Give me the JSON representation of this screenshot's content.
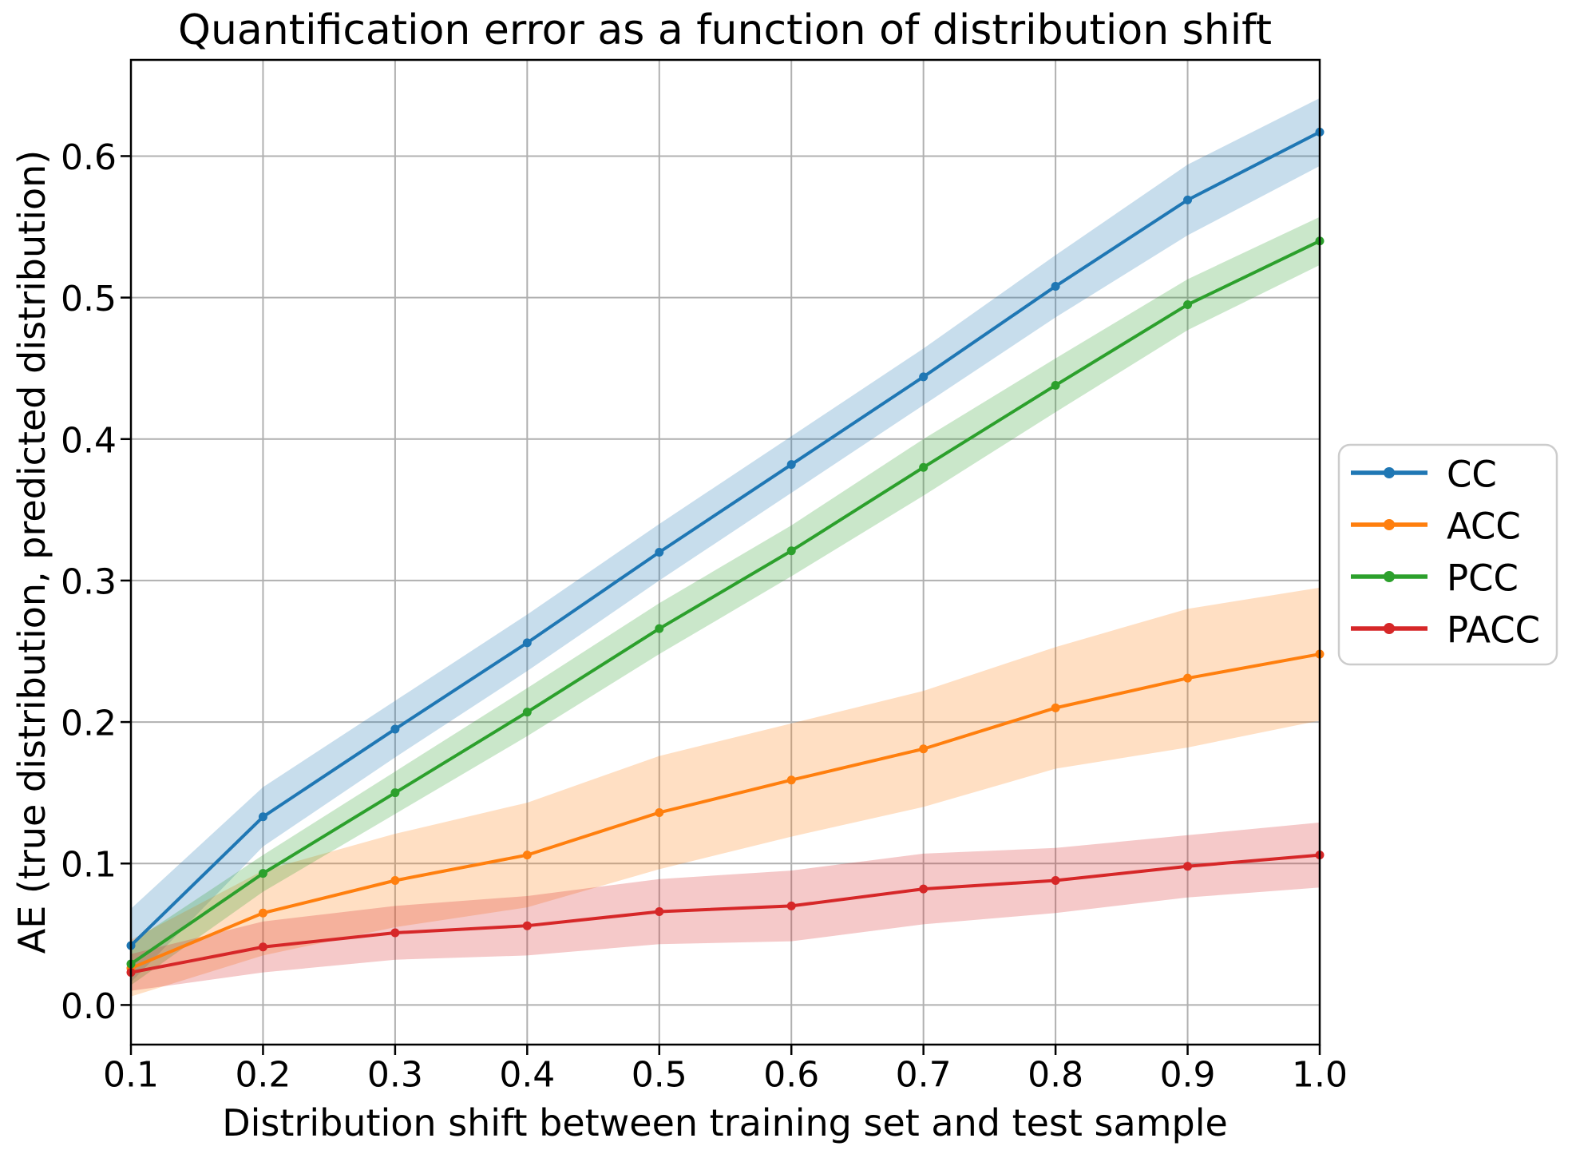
{
  "chart_data": {
    "type": "line",
    "title": "Quantification error as a function of distribution shift",
    "xlabel": "Distribution shift between training set and test sample",
    "ylabel": "AE (true distribution, predicted distribution)",
    "x": [
      0.1,
      0.2,
      0.3,
      0.4,
      0.5,
      0.6,
      0.7,
      0.8,
      0.9,
      1.0
    ],
    "x_tick_labels": [
      "0.1",
      "0.2",
      "0.3",
      "0.4",
      "0.5",
      "0.6",
      "0.7",
      "0.8",
      "0.9",
      "1.0"
    ],
    "y_tick_labels": [
      "0.0",
      "0.1",
      "0.2",
      "0.3",
      "0.4",
      "0.5",
      "0.6"
    ],
    "xlim": [
      0.1,
      1.0
    ],
    "ylim": [
      -0.028,
      0.668
    ],
    "grid": true,
    "grid_color": "#b0b0b0",
    "spine_color": "#000000",
    "band_alpha": 0.25,
    "legend_position": "right-outside",
    "series": [
      {
        "name": "CC",
        "color": "#1f77b4",
        "values": [
          0.042,
          0.133,
          0.195,
          0.256,
          0.32,
          0.382,
          0.444,
          0.508,
          0.569,
          0.617
        ],
        "band_halfwidth": [
          0.026,
          0.021,
          0.02,
          0.02,
          0.02,
          0.02,
          0.02,
          0.022,
          0.025,
          0.024
        ]
      },
      {
        "name": "ACC",
        "color": "#ff7f0e",
        "values": [
          0.026,
          0.065,
          0.088,
          0.106,
          0.136,
          0.159,
          0.181,
          0.21,
          0.231,
          0.248
        ],
        "band_halfwidth": [
          0.02,
          0.03,
          0.033,
          0.037,
          0.04,
          0.04,
          0.041,
          0.043,
          0.049,
          0.047
        ]
      },
      {
        "name": "PCC",
        "color": "#2ca02c",
        "values": [
          0.029,
          0.093,
          0.15,
          0.207,
          0.266,
          0.321,
          0.38,
          0.438,
          0.495,
          0.54
        ],
        "band_halfwidth": [
          0.015,
          0.013,
          0.015,
          0.017,
          0.018,
          0.018,
          0.02,
          0.019,
          0.018,
          0.017
        ]
      },
      {
        "name": "PACC",
        "color": "#d62728",
        "values": [
          0.023,
          0.041,
          0.051,
          0.056,
          0.066,
          0.07,
          0.082,
          0.088,
          0.098,
          0.106
        ],
        "band_halfwidth": [
          0.013,
          0.018,
          0.019,
          0.021,
          0.023,
          0.025,
          0.025,
          0.023,
          0.022,
          0.023
        ]
      }
    ]
  }
}
